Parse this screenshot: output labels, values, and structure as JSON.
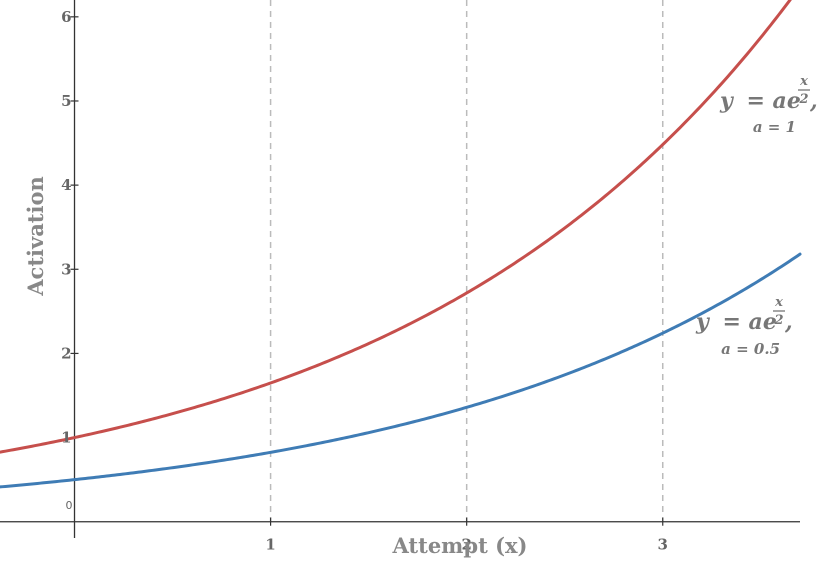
{
  "chart_data": {
    "type": "line",
    "title": "",
    "xlabel": "Attempt (x)",
    "ylabel": "Activation",
    "xlim": [
      -0.38,
      3.7
    ],
    "ylim": [
      -0.55,
      6.2
    ],
    "x_ticks": [
      1,
      2,
      3
    ],
    "x_tick_labels": [
      "1",
      "2",
      "3"
    ],
    "y_ticks": [
      1,
      2,
      3,
      4,
      5,
      6
    ],
    "y_tick_labels": [
      "1",
      "2",
      "3",
      "4",
      "5",
      "6"
    ],
    "origin_label": "0",
    "vertical_gridlines": {
      "x": [
        1,
        2,
        3
      ],
      "style": "dashed"
    },
    "series": [
      {
        "color": "#c64f4c",
        "formula": {
          "a": 1,
          "k": 0.5
        },
        "label": {
          "y": "y",
          "eq": "= ae",
          "num": "x",
          "den": "2",
          "comma": ",",
          "sub": "a = 1"
        }
      },
      {
        "color": "#3f7cb5",
        "formula": {
          "a": 0.5,
          "k": 0.5
        },
        "label": {
          "y": "y",
          "eq": "= ae",
          "num": "x",
          "den": "2",
          "comma": ",",
          "sub": "a = 0.5"
        }
      }
    ]
  }
}
